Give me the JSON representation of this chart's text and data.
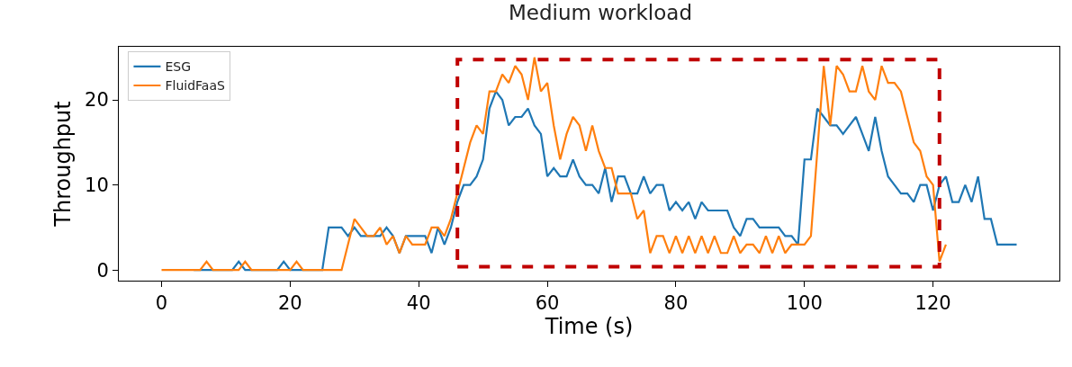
{
  "chart_data": {
    "type": "line",
    "title": "Medium workload",
    "xlabel": "Time (s)",
    "ylabel": "Throughput",
    "x": [
      0,
      1,
      2,
      3,
      4,
      5,
      6,
      7,
      8,
      9,
      10,
      11,
      12,
      13,
      14,
      15,
      16,
      17,
      18,
      19,
      20,
      21,
      22,
      23,
      24,
      25,
      26,
      27,
      28,
      29,
      30,
      31,
      32,
      33,
      34,
      35,
      36,
      37,
      38,
      39,
      40,
      41,
      42,
      43,
      44,
      45,
      46,
      47,
      48,
      49,
      50,
      51,
      52,
      53,
      54,
      55,
      56,
      57,
      58,
      59,
      60,
      61,
      62,
      63,
      64,
      65,
      66,
      67,
      68,
      69,
      70,
      71,
      72,
      73,
      74,
      75,
      76,
      77,
      78,
      79,
      80,
      81,
      82,
      83,
      84,
      85,
      86,
      87,
      88,
      89,
      90,
      91,
      92,
      93,
      94,
      95,
      96,
      97,
      98,
      99,
      100,
      101,
      102,
      103,
      104,
      105,
      106,
      107,
      108,
      109,
      110,
      111,
      112,
      113,
      114,
      115,
      116,
      117,
      118,
      119,
      120,
      121,
      122,
      123,
      124,
      125,
      126,
      127,
      128,
      129,
      130,
      131,
      132,
      133
    ],
    "series": [
      {
        "name": "ESG",
        "color": "#1f77b4",
        "values": [
          null,
          null,
          null,
          null,
          null,
          0,
          0,
          0,
          0,
          0,
          0,
          0,
          1,
          0,
          0,
          0,
          0,
          0,
          0,
          1,
          0,
          0,
          0,
          0,
          0,
          0,
          5,
          5,
          5,
          4,
          5,
          4,
          4,
          4,
          4,
          5,
          4,
          2,
          4,
          4,
          4,
          4,
          2,
          5,
          3,
          5,
          8,
          10,
          10,
          11,
          13,
          19,
          21,
          20,
          17,
          18,
          18,
          19,
          17,
          16,
          11,
          12,
          11,
          11,
          13,
          11,
          10,
          10,
          9,
          12,
          8,
          11,
          11,
          9,
          9,
          11,
          9,
          10,
          10,
          7,
          8,
          7,
          8,
          6,
          8,
          7,
          7,
          7,
          7,
          5,
          4,
          6,
          6,
          5,
          5,
          5,
          5,
          4,
          4,
          3,
          13,
          13,
          19,
          18,
          17,
          17,
          16,
          17,
          18,
          16,
          14,
          18,
          14,
          11,
          10,
          9,
          9,
          8,
          10,
          10,
          7,
          10,
          11,
          8,
          8,
          10,
          8,
          11,
          6,
          6,
          3,
          3,
          3,
          3
        ]
      },
      {
        "name": "FluidFaaS",
        "color": "#ff7f0e",
        "values": [
          0,
          0,
          0,
          0,
          0,
          0,
          0,
          1,
          0,
          0,
          0,
          0,
          0,
          1,
          0,
          0,
          0,
          0,
          0,
          0,
          0,
          1,
          0,
          0,
          0,
          0,
          0,
          0,
          0,
          3,
          6,
          5,
          4,
          4,
          5,
          3,
          4,
          2,
          4,
          3,
          3,
          3,
          5,
          5,
          4,
          6,
          9,
          12,
          15,
          17,
          16,
          21,
          21,
          23,
          22,
          24,
          23,
          20,
          25,
          21,
          22,
          17,
          13,
          16,
          18,
          17,
          14,
          17,
          14,
          12,
          12,
          9,
          9,
          9,
          6,
          7,
          2,
          4,
          4,
          2,
          4,
          2,
          4,
          2,
          4,
          2,
          4,
          2,
          2,
          4,
          2,
          3,
          3,
          2,
          4,
          2,
          4,
          2,
          3,
          3,
          3,
          4,
          14,
          24,
          17,
          24,
          23,
          21,
          21,
          24,
          21,
          20,
          24,
          22,
          22,
          21,
          18,
          15,
          14,
          11,
          10,
          1,
          3,
          null,
          null,
          null,
          null,
          null,
          null,
          null,
          null,
          null,
          null,
          null
        ]
      }
    ],
    "xlim": [
      -6.65,
      139.65
    ],
    "ylim": [
      -1.25,
      26.25
    ],
    "xticks": [
      0,
      20,
      40,
      60,
      80,
      100,
      120
    ],
    "yticks": [
      0,
      10,
      20
    ],
    "legend": "top left",
    "line_style": "solid",
    "marker": "none"
  }
}
